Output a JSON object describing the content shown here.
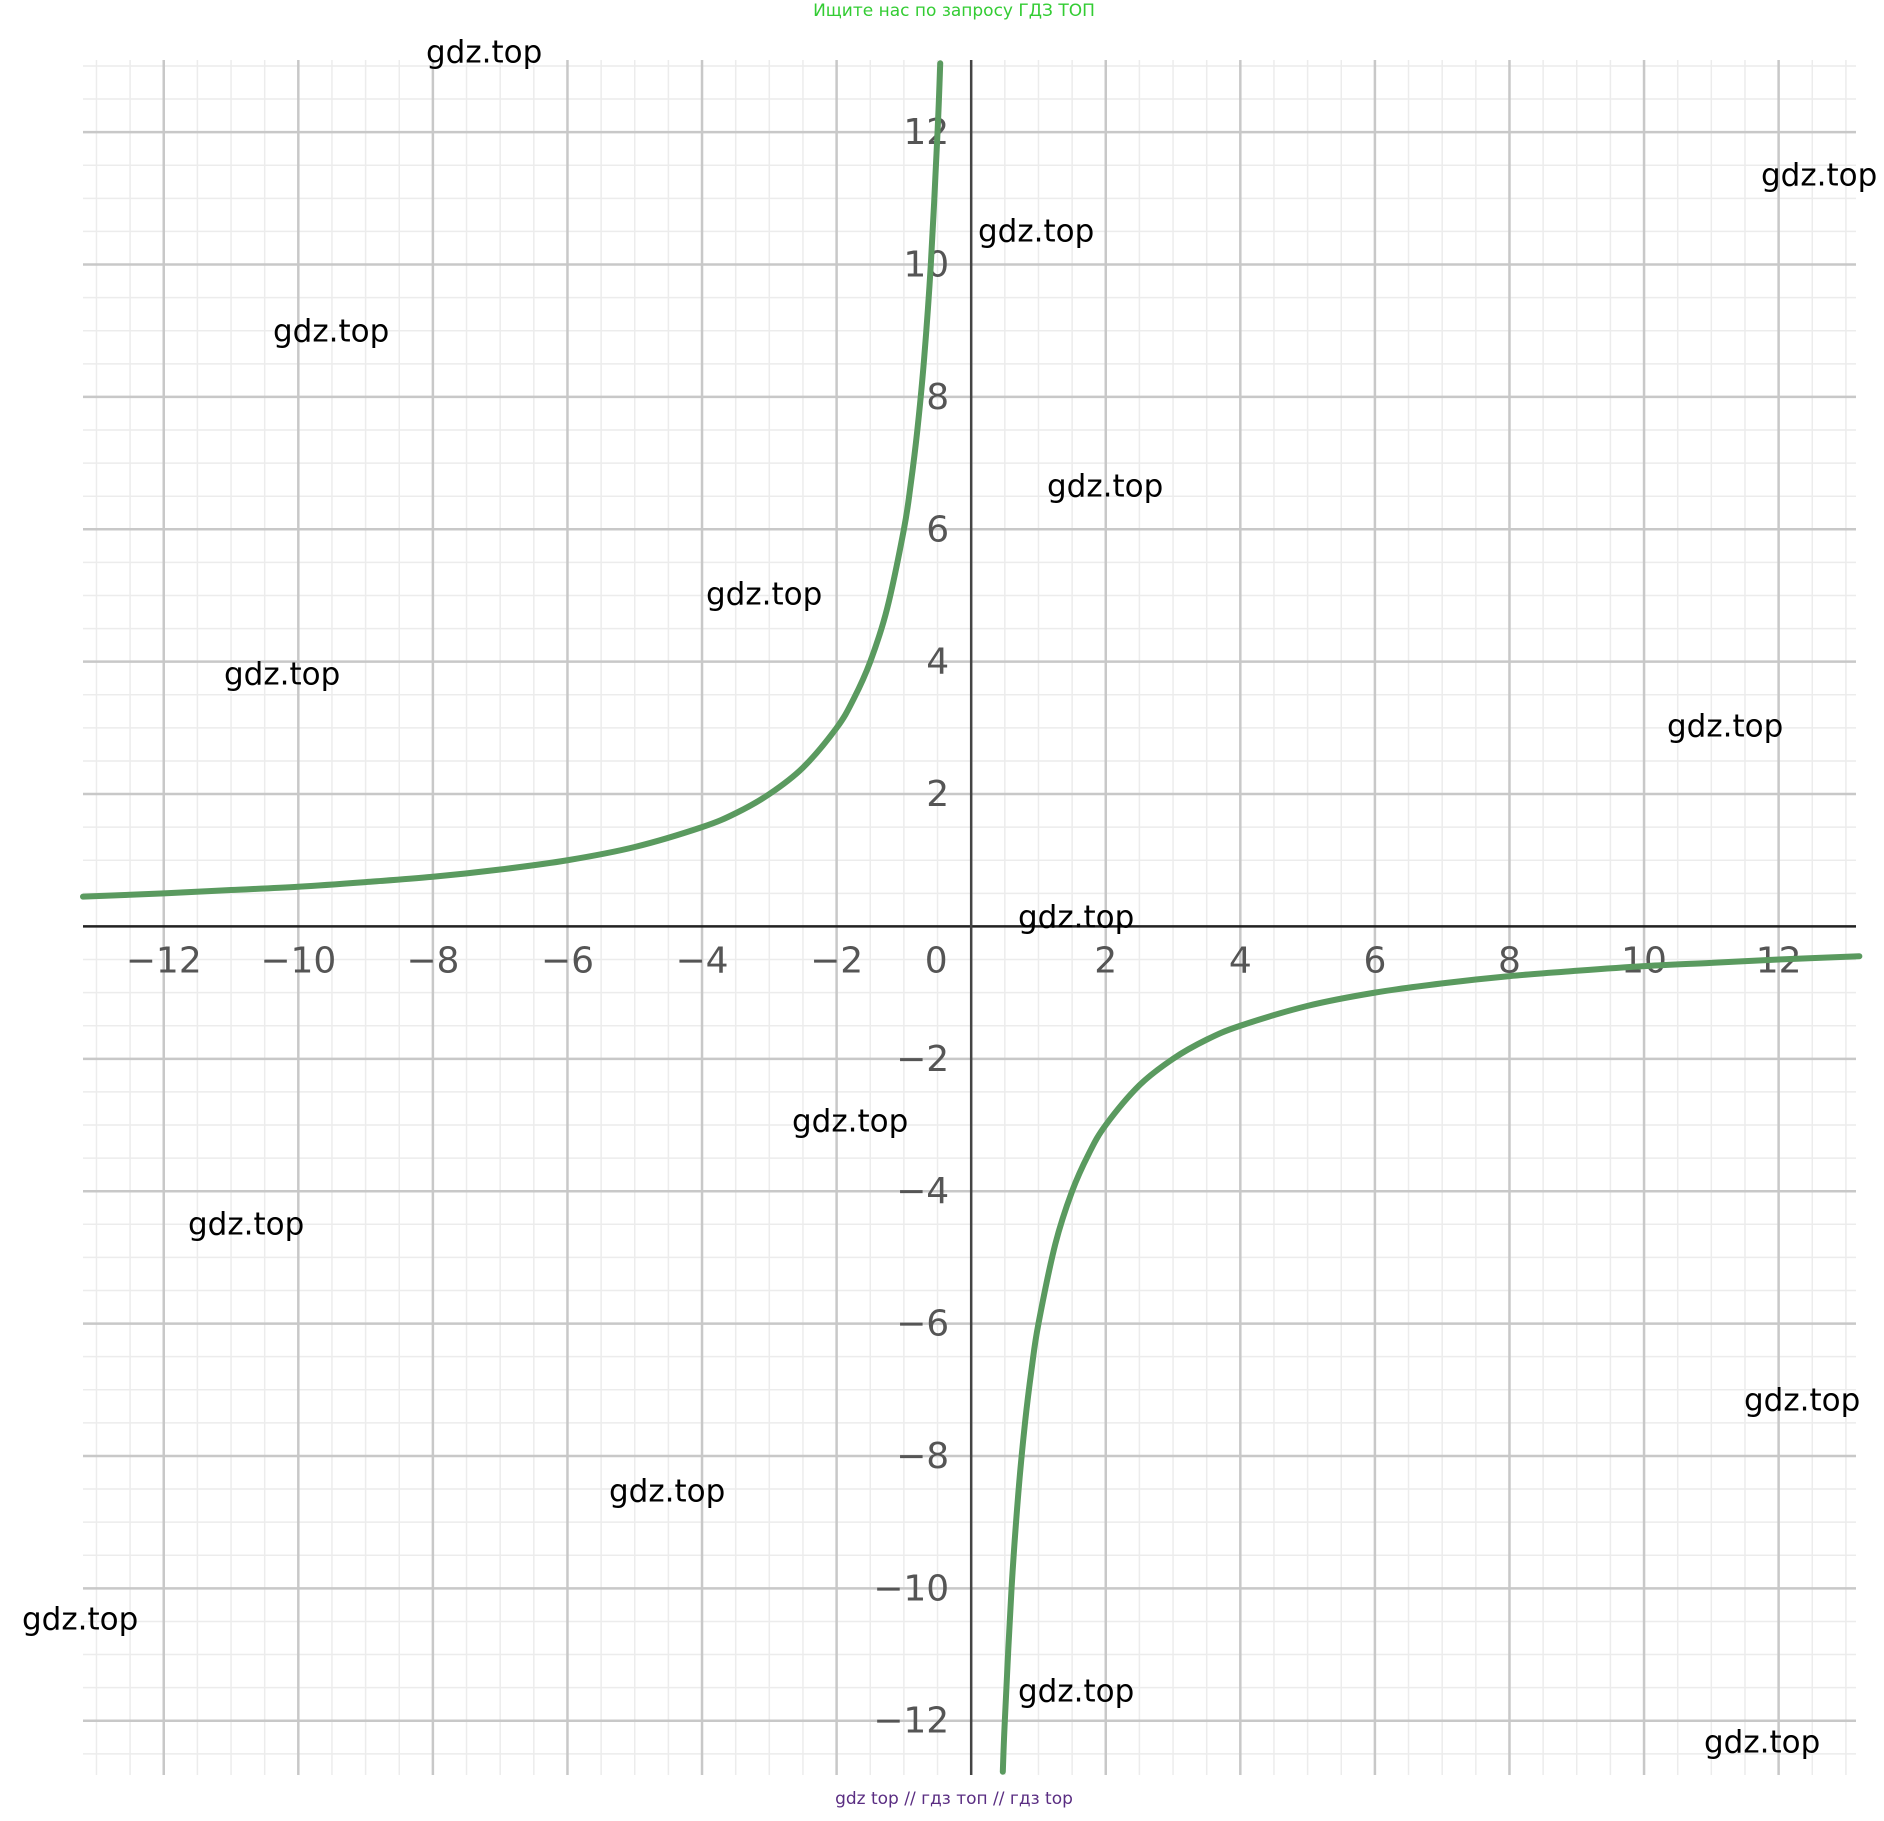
{
  "header": "Ищите нас по запросу ГДЗ ТОП",
  "footer": "gdz top  //  гдз топ  //  гдз top",
  "watermarks": [
    "gdz.top",
    "gdz.top",
    "gdz.top",
    "gdz.top",
    "gdz.top",
    "gdz.top",
    "gdz.top",
    "gdz.top",
    "gdz.top",
    "gdz.top",
    "gdz.top",
    "gdz.top",
    "gdz.top",
    "gdz.top",
    "gdz.top",
    "gdz.top"
  ],
  "chart_data": {
    "type": "line",
    "x": [
      -13.2,
      -12,
      -11,
      -10,
      -9,
      -8,
      -7,
      -6,
      -5,
      -4,
      -3.5,
      -3,
      -2.5,
      -2,
      -1.75,
      -1.5,
      -1.25,
      -1,
      -0.9,
      -0.8,
      -0.7,
      -0.6,
      -0.5,
      -0.46,
      0,
      0.47,
      0.5,
      0.6,
      0.7,
      0.8,
      0.9,
      1,
      1.25,
      1.5,
      1.75,
      2,
      2.5,
      3,
      3.5,
      4,
      5,
      6,
      7,
      8,
      9,
      10,
      11,
      12,
      13.2
    ],
    "series": [
      {
        "color": "#5a9a5f",
        "values": [
          0.45,
          0.5,
          0.55,
          0.6,
          0.67,
          0.75,
          0.86,
          1,
          1.2,
          1.5,
          1.71,
          2,
          2.4,
          3,
          3.43,
          4,
          4.8,
          6,
          6.67,
          7.5,
          8.57,
          10,
          12,
          13.04,
          null,
          -12.77,
          -12,
          -10,
          -8.57,
          -7.5,
          -6.67,
          -6,
          -4.8,
          -4,
          -3.43,
          -3,
          -2.4,
          -2,
          -1.71,
          -1.5,
          -1.2,
          -1,
          -0.86,
          -0.75,
          -0.67,
          -0.6,
          -0.55,
          -0.5,
          -0.45
        ]
      }
    ],
    "xlim": [
      -13.2,
      13.15
    ],
    "ylim": [
      -12.82,
      13.09
    ],
    "xticks": [
      {
        "value": -12,
        "label": "−12"
      },
      {
        "value": -10,
        "label": "−10"
      },
      {
        "value": -8,
        "label": "−8"
      },
      {
        "value": -6,
        "label": "−6"
      },
      {
        "value": -4,
        "label": "−4"
      },
      {
        "value": -2,
        "label": "−2"
      },
      0,
      2,
      4,
      6,
      8,
      10,
      12
    ],
    "yticks": [
      {
        "value": -12,
        "label": "−12"
      },
      {
        "value": -10,
        "label": "−10"
      },
      {
        "value": -8,
        "label": "−8"
      },
      {
        "value": -6,
        "label": "−6"
      },
      {
        "value": -4,
        "label": "−4"
      },
      {
        "value": -2,
        "label": "−2"
      },
      2,
      4,
      6,
      8,
      10,
      12
    ],
    "grid": true
  }
}
